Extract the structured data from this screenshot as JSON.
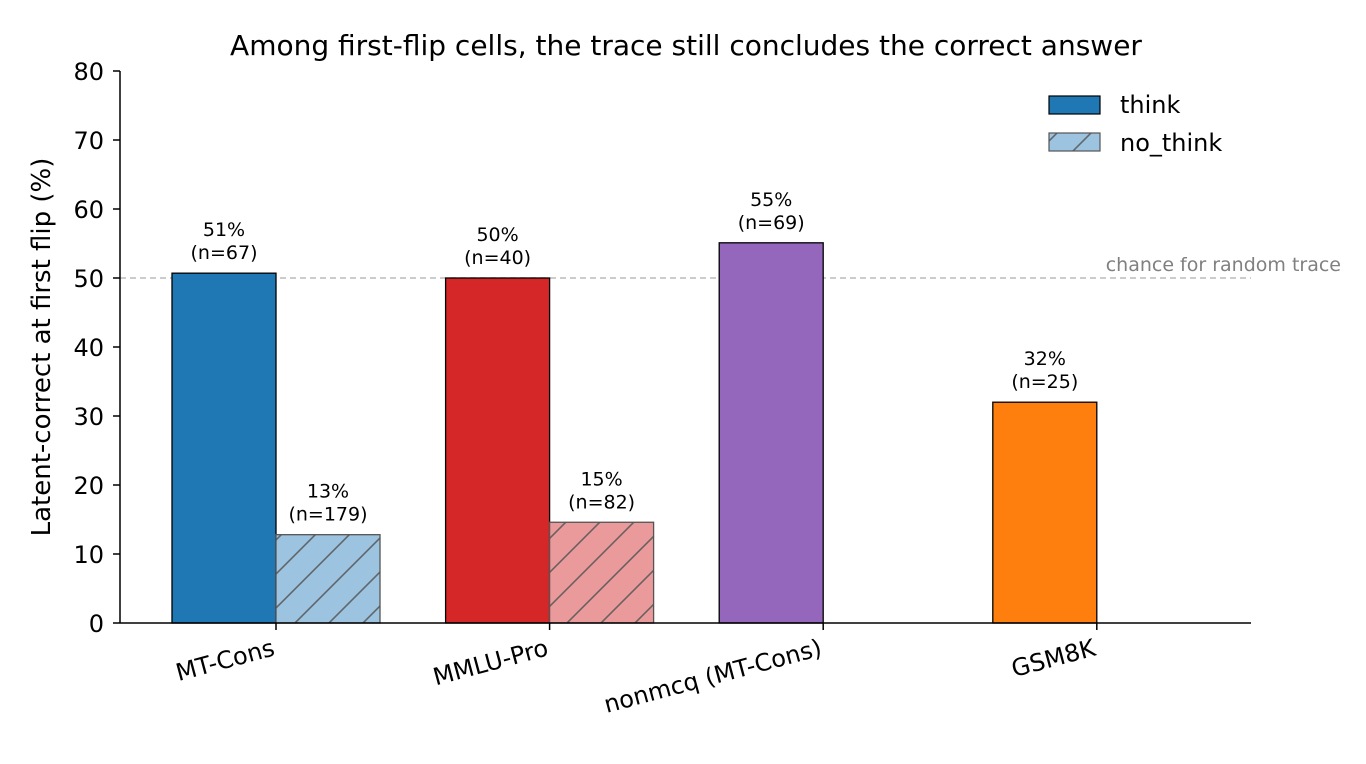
{
  "chart_data": {
    "type": "bar",
    "title": "Among first-flip cells, the trace still concludes the correct answer",
    "ylabel": "Latent-correct at first flip (%)",
    "xlabel": "",
    "ylim": [
      0,
      80
    ],
    "yticks": [
      0,
      10,
      20,
      30,
      40,
      50,
      60,
      70,
      80
    ],
    "grid": false,
    "legend_position": "top-right",
    "categories": [
      "MT-Cons",
      "MMLU-Pro",
      "nonmcq (MT-Cons)",
      "GSM8K"
    ],
    "category_colors": [
      "#1f77b4",
      "#d62728",
      "#9467bd",
      "#ff7f0e"
    ],
    "series": [
      {
        "name": "think",
        "values": [
          50.7,
          50.0,
          55.1,
          32.0
        ],
        "labels": [
          [
            "51%",
            "(n=67)"
          ],
          [
            "50%",
            "(n=40)"
          ],
          [
            "55%",
            "(n=69)"
          ],
          [
            "32%",
            "(n=25)"
          ]
        ],
        "hatched": false
      },
      {
        "name": "no_think",
        "values": [
          12.8,
          14.6,
          null,
          null
        ],
        "labels": [
          [
            "13%",
            "(n=179)"
          ],
          [
            "15%",
            "(n=82)"
          ],
          null,
          null
        ],
        "hatched": true
      }
    ],
    "reference_line": {
      "value": 50,
      "label": "chance for random trace",
      "color": "#bbbbbb"
    }
  }
}
